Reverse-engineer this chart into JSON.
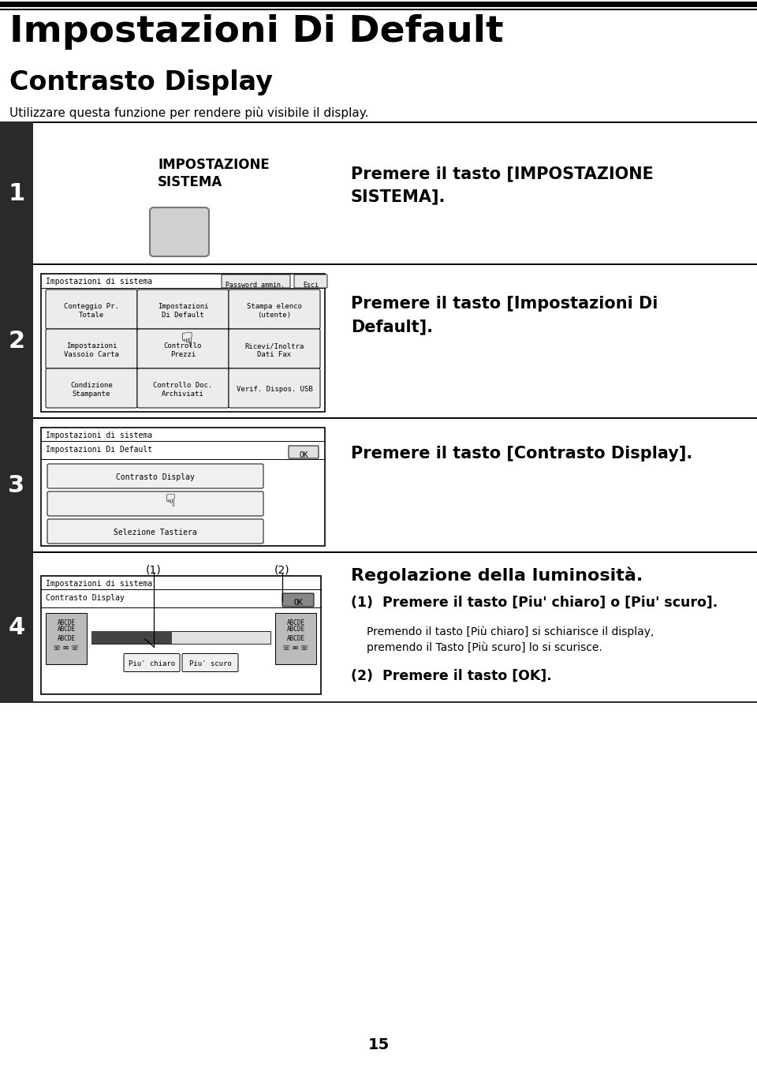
{
  "title": "Impostazioni Di Default",
  "subtitle": "Contrasto Display",
  "subtitle2": "Utilizzare questa funzione per rendere più visibile il display.",
  "step1_text": "Premere il tasto [IMPOSTAZIONE\nSISTEMA].",
  "step2_text": "Premere il tasto [Impostazioni Di\nDefault].",
  "step3_text": "Premere il tasto [Contrasto Display].",
  "step4_title": "Regolazione della luminosità.",
  "step4_sub1": "(1)  Premere il tasto [Piu' chiaro] o [Piu' scuro].",
  "step4_sub1b": "Premendo il tasto [Più chiaro] si schiarisce il display,\npremendo il Tasto [Più scuro] lo si scurisce.",
  "step4_sub2": "(2)  Premere il tasto [OK].",
  "page_number": "15",
  "bg_color": "#ffffff",
  "step_bg": "#2a2a2a",
  "step_text_color": "#ffffff"
}
